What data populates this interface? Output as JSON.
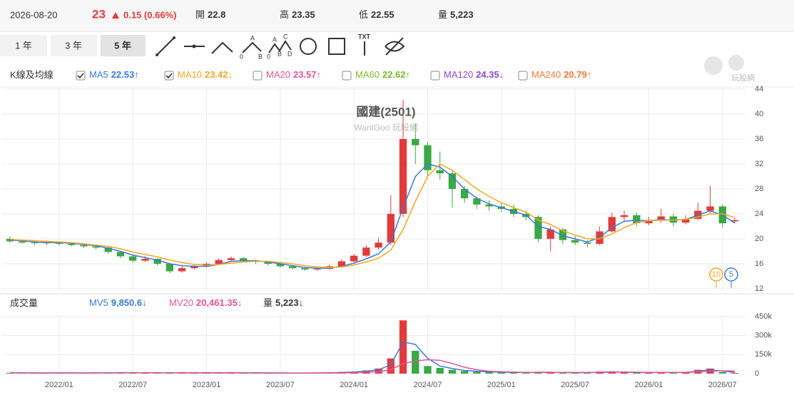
{
  "header": {
    "date": "2026-08-20",
    "price": 23,
    "change": "0.15 (0.66%)",
    "stats": [
      {
        "label": "開",
        "value": 22.8
      },
      {
        "label": "高",
        "value": 23.35
      },
      {
        "label": "低",
        "value": 22.55
      },
      {
        "label": "量",
        "value": "5,223"
      }
    ]
  },
  "toolbar": {
    "ranges": [
      "1 年",
      "3 年",
      "5 年"
    ],
    "active": 2,
    "abc_icon": [
      "A",
      "0",
      "B"
    ],
    "abcd_icon": [
      "A",
      "C",
      "0",
      "B",
      "D"
    ],
    "txt_icon": "TXT"
  },
  "logo": "玩股網",
  "chart_data": [
    {
      "type": "candlestick",
      "title": "國建(2501)",
      "subtitle": "WantGoo 玩股網",
      "legend_title": "K線及均線",
      "up_color": "#e23b3b",
      "down_color": "#3aa845",
      "open": [
        20.0,
        19.6,
        19.4,
        19.3,
        19.4,
        19.2,
        19.0,
        18.8,
        18.6,
        17.9,
        17.2,
        16.5,
        16.8,
        16.0,
        14.8,
        15.3,
        15.6,
        16.0,
        16.6,
        16.9,
        16.5,
        16.3,
        16.0,
        15.6,
        15.3,
        15.1,
        15.2,
        15.6,
        16.4,
        17.3,
        18.6,
        19.4,
        24.0,
        36.0,
        35.0,
        31.0,
        30.5,
        28.0,
        26.5,
        25.5,
        25.2,
        24.8,
        24.0,
        23.5,
        20.0,
        21.5,
        19.8,
        19.4,
        19.2,
        21.2,
        23.5,
        23.8,
        22.5,
        23.0,
        23.6,
        22.6,
        23.2,
        24.5,
        25.2,
        22.8
      ],
      "high": [
        20.4,
        19.9,
        19.7,
        19.7,
        19.6,
        19.4,
        19.2,
        19.0,
        18.8,
        18.1,
        17.4,
        17.2,
        16.9,
        16.2,
        15.6,
        15.8,
        16.2,
        16.9,
        17.2,
        17.1,
        16.7,
        16.4,
        16.2,
        15.8,
        15.5,
        15.4,
        15.9,
        16.7,
        17.6,
        19.0,
        20.2,
        27.0,
        42.3,
        38.5,
        35.5,
        34.0,
        31.0,
        28.5,
        26.8,
        26.2,
        25.8,
        25.5,
        24.5,
        23.8,
        22.0,
        21.8,
        20.5,
        19.8,
        22.0,
        24.2,
        24.5,
        24.2,
        23.5,
        24.8,
        24.0,
        23.8,
        25.8,
        28.5,
        25.5,
        23.35
      ],
      "low": [
        19.4,
        19.2,
        19.0,
        19.0,
        18.9,
        18.8,
        18.5,
        18.3,
        17.6,
        16.9,
        16.2,
        16.3,
        15.7,
        14.5,
        14.6,
        15.1,
        15.4,
        15.8,
        16.4,
        16.3,
        16.0,
        15.7,
        15.4,
        15.1,
        14.9,
        14.9,
        15.0,
        15.4,
        16.2,
        17.1,
        18.3,
        19.0,
        23.5,
        32.0,
        30.0,
        29.5,
        25.0,
        25.8,
        24.8,
        24.5,
        24.3,
        23.5,
        23.0,
        19.5,
        18.0,
        19.2,
        19.0,
        18.6,
        19.0,
        21.0,
        22.8,
        22.0,
        22.2,
        22.6,
        22.0,
        22.3,
        23.0,
        24.0,
        21.8,
        22.55
      ],
      "close": [
        19.6,
        19.4,
        19.3,
        19.4,
        19.2,
        19.0,
        18.8,
        18.6,
        17.9,
        17.2,
        16.5,
        16.8,
        16.0,
        14.8,
        15.3,
        15.6,
        16.0,
        16.6,
        16.9,
        16.5,
        16.3,
        16.0,
        15.6,
        15.3,
        15.1,
        15.2,
        15.6,
        16.4,
        17.3,
        18.6,
        19.4,
        24.0,
        36.0,
        35.0,
        31.0,
        30.5,
        28.0,
        26.5,
        25.5,
        25.2,
        24.8,
        24.0,
        23.5,
        20.0,
        21.5,
        19.8,
        19.4,
        19.2,
        21.2,
        23.5,
        23.8,
        22.5,
        23.0,
        23.6,
        22.6,
        23.2,
        24.5,
        25.2,
        22.5,
        23
      ],
      "overlays": [
        {
          "name": "MA5",
          "color": "#3a7bd5",
          "checked": true,
          "value": 22.53,
          "trend": "↑",
          "values": [
            19.8,
            19.7,
            19.5,
            19.4,
            19.4,
            19.3,
            19.1,
            18.9,
            18.5,
            18.0,
            17.4,
            17.0,
            16.6,
            16.0,
            15.7,
            15.6,
            15.6,
            15.9,
            16.4,
            16.5,
            16.5,
            16.3,
            16.0,
            15.7,
            15.4,
            15.3,
            15.3,
            15.6,
            16.1,
            16.8,
            17.6,
            19.5,
            25.0,
            30.0,
            32.0,
            31.5,
            30.0,
            28.0,
            26.5,
            25.6,
            25.0,
            24.4,
            23.8,
            22.0,
            21.5,
            20.5,
            20.0,
            19.5,
            20.2,
            21.8,
            22.8,
            23.0,
            22.9,
            23.1,
            23.0,
            23.1,
            23.8,
            24.5,
            23.8,
            22.53
          ]
        },
        {
          "name": "MA10",
          "color": "#f5a623",
          "checked": true,
          "value": 23.42,
          "trend": "↓",
          "values": [
            19.9,
            19.8,
            19.7,
            19.6,
            19.5,
            19.4,
            19.2,
            19.0,
            18.8,
            18.4,
            17.9,
            17.5,
            17.1,
            16.6,
            16.2,
            15.9,
            15.8,
            15.9,
            16.1,
            16.3,
            16.4,
            16.4,
            16.2,
            16.0,
            15.7,
            15.5,
            15.4,
            15.5,
            15.8,
            16.3,
            16.9,
            18.2,
            21.5,
            26.0,
            30.0,
            32.0,
            31.0,
            29.5,
            28.0,
            26.8,
            25.8,
            25.0,
            24.3,
            23.0,
            22.3,
            21.3,
            20.6,
            20.0,
            20.0,
            20.8,
            21.8,
            22.6,
            22.9,
            23.0,
            23.0,
            23.1,
            23.5,
            24.0,
            24.0,
            23.42
          ]
        },
        {
          "name": "MA20",
          "color": "#e0559a",
          "checked": false,
          "value": 23.57,
          "trend": "↑"
        },
        {
          "name": "MA60",
          "color": "#7cb82f",
          "checked": false,
          "value": 22.62,
          "trend": "↑"
        },
        {
          "name": "MA120",
          "color": "#8e44d6",
          "checked": false,
          "value": 24.35,
          "trend": "↓"
        },
        {
          "name": "MA240",
          "color": "#f07a3c",
          "checked": false,
          "value": 20.79,
          "trend": "↑"
        }
      ],
      "markers": [
        {
          "label": "10",
          "color": "#f5a623"
        },
        {
          "label": "5",
          "color": "#3a7bd5"
        }
      ],
      "ylim": [
        12,
        44
      ],
      "yticks": [
        12,
        16,
        20,
        24,
        28,
        32,
        36,
        40,
        44
      ],
      "grid": true
    },
    {
      "type": "bar",
      "legend_title": "成交量",
      "categories": [
        null,
        null,
        null,
        null,
        "2022/01",
        null,
        null,
        null,
        null,
        null,
        "2022/07",
        null,
        null,
        null,
        null,
        null,
        "2023/01",
        null,
        null,
        null,
        null,
        null,
        "2023/07",
        null,
        null,
        null,
        null,
        null,
        "2024/01",
        null,
        null,
        null,
        null,
        null,
        "2024/07",
        null,
        null,
        null,
        null,
        null,
        "2025/01",
        null,
        null,
        null,
        null,
        null,
        "2025/07",
        null,
        null,
        null,
        null,
        null,
        "2026/01",
        null,
        null,
        null,
        null,
        null,
        "2026/07",
        null
      ],
      "values": [
        6000,
        5000,
        4000,
        5000,
        7000,
        5000,
        4000,
        6000,
        8000,
        9000,
        7000,
        6000,
        5000,
        9000,
        6000,
        5000,
        7000,
        6000,
        8000,
        6000,
        5000,
        4000,
        5000,
        4000,
        5000,
        6000,
        8000,
        12000,
        15000,
        25000,
        40000,
        120000,
        420000,
        180000,
        60000,
        45000,
        30000,
        20000,
        15000,
        12000,
        10000,
        9000,
        8000,
        14000,
        10000,
        8000,
        7000,
        9000,
        16000,
        14000,
        10000,
        8000,
        9000,
        10000,
        8000,
        12000,
        30000,
        40000,
        12000,
        5223
      ],
      "series": [
        {
          "name": "MV5",
          "color": "#3a7bd5",
          "value": 9850.6,
          "label": "9,850.6",
          "trend": "↓",
          "values": [
            6000,
            5500,
            5000,
            5000,
            5500,
            5500,
            5000,
            5500,
            6500,
            7500,
            8000,
            7000,
            6000,
            7000,
            7000,
            6500,
            6500,
            6500,
            7000,
            6500,
            6000,
            5000,
            5000,
            4500,
            4500,
            5000,
            6500,
            9000,
            13000,
            20000,
            30000,
            70000,
            250000,
            230000,
            120000,
            60000,
            40000,
            25000,
            18000,
            14000,
            11000,
            10000,
            9000,
            11000,
            11000,
            9000,
            8000,
            8500,
            12000,
            14000,
            12000,
            9000,
            9000,
            9500,
            9000,
            10000,
            20000,
            30000,
            20000,
            9850.6
          ]
        },
        {
          "name": "MV20",
          "color": "#e0559a",
          "value": 20461.35,
          "label": "20,461.35",
          "trend": "↓",
          "values": [
            6000,
            6000,
            6000,
            5500,
            5500,
            5500,
            5500,
            5500,
            6000,
            6500,
            7000,
            7000,
            7000,
            7000,
            6500,
            6500,
            6500,
            6500,
            6500,
            6500,
            6000,
            6000,
            5500,
            5000,
            5000,
            5000,
            5500,
            6500,
            8000,
            11000,
            16000,
            30000,
            80000,
            100000,
            110000,
            105000,
            80000,
            50000,
            30000,
            20000,
            15000,
            12000,
            10000,
            10000,
            10000,
            9500,
            9000,
            9000,
            10000,
            11000,
            12000,
            11000,
            10000,
            9500,
            9500,
            10000,
            14000,
            20000,
            22000,
            20461.35
          ]
        },
        {
          "name": "量",
          "color": "#333333",
          "value": 5223,
          "label": "5,223",
          "trend": "↓"
        }
      ],
      "ylim": [
        0,
        450000
      ],
      "yticks": [
        0,
        {
          "value": 150000,
          "label": "150k"
        },
        {
          "value": 300000,
          "label": "300k"
        },
        {
          "value": 450000,
          "label": "450k"
        }
      ],
      "grid": true
    }
  ]
}
